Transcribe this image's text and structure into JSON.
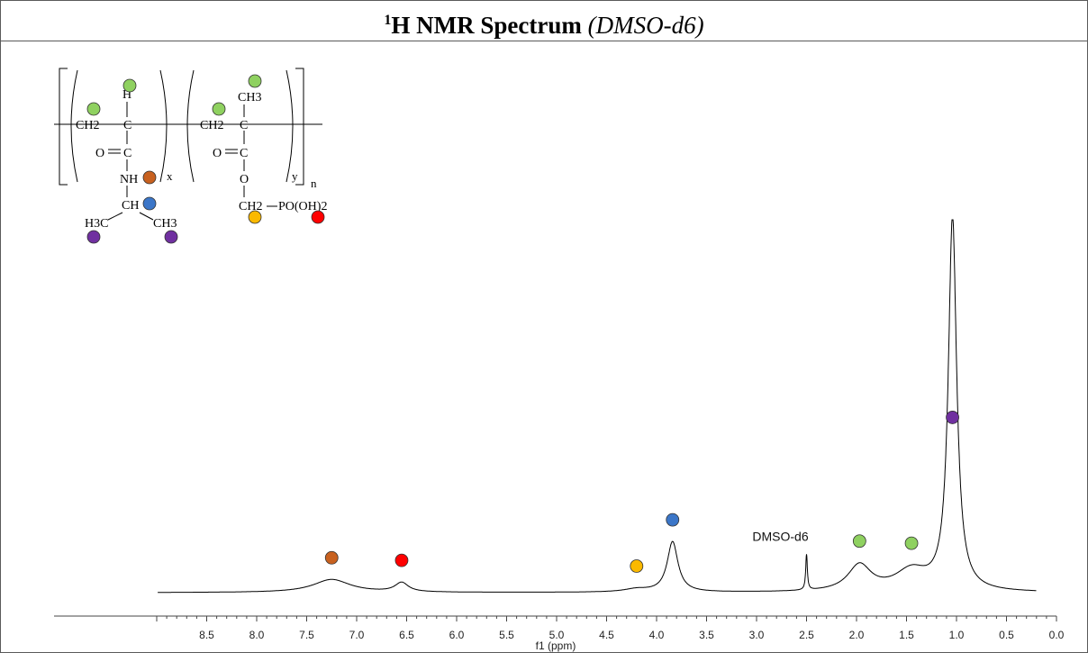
{
  "title": {
    "main": "H NMR Spectrum",
    "superscript": "1",
    "solvent": "(DMSO-d6)"
  },
  "colors": {
    "green": "#8fd160",
    "orange": "#c8611f",
    "red": "#ff0000",
    "yellow": "#fbb900",
    "blue": "#3b76c8",
    "purple": "#7030a0"
  },
  "structure": {
    "unit1": {
      "ch2": "CH2",
      "ch": "C",
      "h": "H",
      "carbonyl_o": "O",
      "carbonyl_c": "C",
      "nh": "NH",
      "ch_iso": "CH",
      "ch3_left": "H3C",
      "ch3_right": "CH3",
      "subscript": "x"
    },
    "unit2": {
      "ch2": "CH2",
      "c": "C",
      "ch3": "CH3",
      "carbonyl_o": "O",
      "carbonyl_c": "C",
      "ester_o": "O",
      "ch2_p": "CH2",
      "phosphonate": "PO(OH)2",
      "subscript": "y"
    },
    "repeat": "n"
  },
  "chart_data": {
    "type": "line",
    "title": "1H NMR Spectrum (DMSO-d6)",
    "xlabel": "f1 (ppm)",
    "ylabel": "",
    "xlim": [
      9.0,
      0.0
    ],
    "x_reversed": true,
    "grid": false,
    "xticks": [
      "8.5",
      "8.0",
      "7.5",
      "7.0",
      "6.5",
      "6.0",
      "5.5",
      "5.0",
      "4.5",
      "4.0",
      "3.5",
      "3.0",
      "2.5",
      "2.0",
      "1.5",
      "1.0",
      "0.5",
      "0.0"
    ],
    "peaks": [
      {
        "ppm": 7.25,
        "height": 0.035,
        "width": 0.45,
        "marker": "orange"
      },
      {
        "ppm": 6.55,
        "height": 0.025,
        "width": 0.16,
        "marker": "red"
      },
      {
        "ppm": 4.2,
        "height": 0.008,
        "width": 0.3,
        "marker": "yellow"
      },
      {
        "ppm": 3.84,
        "height": 0.135,
        "width": 0.13,
        "marker": "blue"
      },
      {
        "ppm": 2.5,
        "height": 0.095,
        "width": 0.02,
        "marker": null,
        "label": "DMSO-d6"
      },
      {
        "ppm": 1.97,
        "height": 0.07,
        "width": 0.28,
        "marker": "green"
      },
      {
        "ppm": 1.45,
        "height": 0.055,
        "width": 0.4,
        "marker": "green"
      },
      {
        "ppm": 1.04,
        "height": 1.0,
        "width": 0.1,
        "marker": "purple"
      }
    ]
  }
}
